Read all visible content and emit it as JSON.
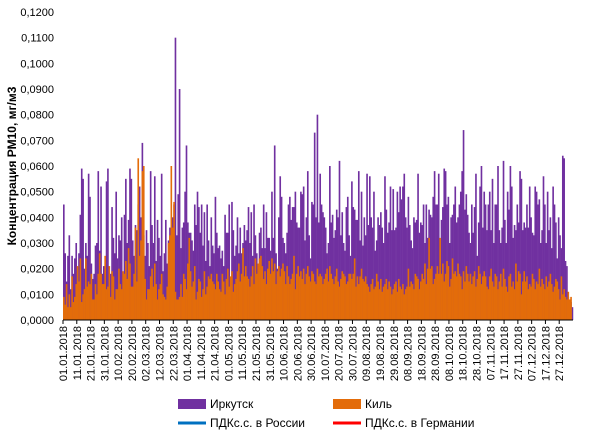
{
  "chart_data": {
    "type": "bar",
    "title": "",
    "ylabel": "Концентрация РМ10, мг/м3",
    "xlabel": "",
    "ylim": [
      0,
      0.12
    ],
    "y_ticks": [
      "0,0000",
      "0,0100",
      "0,0200",
      "0,0300",
      "0,0400",
      "0,0500",
      "0,0600",
      "0,0700",
      "0,0800",
      "0,0900",
      "0,1000",
      "0,1100",
      "0,1200"
    ],
    "x_ticks": [
      "01.01.2018",
      "11.01.2018",
      "21.01.2018",
      "31.01.2018",
      "10.02.2018",
      "20.02.2018",
      "02.03.2018",
      "12.03.2018",
      "22.03.2018",
      "01.04.2018",
      "11.04.2018",
      "21.04.2018",
      "01.05.2018",
      "11.05.2018",
      "21.05.2018",
      "31.05.2018",
      "10.06.2018",
      "20.06.2018",
      "30.06.2018",
      "10.07.2018",
      "20.07.2018",
      "30.07.2018",
      "09.08.2018",
      "19.08.2018",
      "29.08.2018",
      "08.09.2018",
      "18.09.2018",
      "28.09.2018",
      "08.10.2018",
      "18.10.2018",
      "28.10.2018",
      "07.11.2018",
      "17.11.2018",
      "27.11.2018",
      "07.12.2018",
      "17.12.2018",
      "27.12.2018"
    ],
    "x_start": "2018-01-01",
    "grid": false,
    "legend_position": "bottom",
    "series": [
      {
        "name": "Иркутск",
        "color": "#7030A0",
        "values": [
          0.045,
          0.026,
          0.015,
          0.025,
          0.033,
          0.012,
          0.025,
          0.018,
          0.024,
          0.03,
          0.014,
          0.026,
          0.041,
          0.059,
          0.055,
          0.02,
          0.03,
          0.025,
          0.057,
          0.048,
          0.022,
          0.016,
          0.018,
          0.029,
          0.03,
          0.058,
          0.027,
          0.052,
          0.018,
          0.021,
          0.02,
          0.054,
          0.059,
          0.018,
          0.018,
          0.044,
          0.032,
          0.026,
          0.05,
          0.024,
          0.033,
          0.031,
          0.04,
          0.012,
          0.041,
          0.055,
          0.03,
          0.039,
          0.059,
          0.055,
          0.031,
          0.025,
          0.037,
          0.035,
          0.045,
          0.052,
          0.04,
          0.069,
          0.033,
          0.025,
          0.035,
          0.03,
          0.021,
          0.058,
          0.037,
          0.03,
          0.056,
          0.023,
          0.039,
          0.032,
          0.025,
          0.057,
          0.019,
          0.026,
          0.039,
          0.022,
          0.031,
          0.036,
          0.032,
          0.04,
          0.045,
          0.11,
          0.033,
          0.049,
          0.09,
          0.028,
          0.036,
          0.038,
          0.05,
          0.068,
          0.038,
          0.034,
          0.034,
          0.031,
          0.027,
          0.045,
          0.037,
          0.05,
          0.044,
          0.034,
          0.045,
          0.029,
          0.042,
          0.023,
          0.045,
          0.031,
          0.021,
          0.04,
          0.029,
          0.026,
          0.048,
          0.034,
          0.028,
          0.029,
          0.024,
          0.027,
          0.021,
          0.041,
          0.034,
          0.034,
          0.045,
          0.015,
          0.046,
          0.035,
          0.025,
          0.029,
          0.04,
          0.026,
          0.036,
          0.026,
          0.03,
          0.037,
          0.031,
          0.035,
          0.044,
          0.03,
          0.042,
          0.025,
          0.045,
          0.033,
          0.026,
          0.021,
          0.034,
          0.036,
          0.028,
          0.045,
          0.028,
          0.042,
          0.032,
          0.032,
          0.027,
          0.05,
          0.032,
          0.068,
          0.026,
          0.02,
          0.04,
          0.056,
          0.048,
          0.032,
          0.03,
          0.026,
          0.034,
          0.045,
          0.048,
          0.039,
          0.044,
          0.044,
          0.05,
          0.038,
          0.036,
          0.036,
          0.05,
          0.049,
          0.052,
          0.031,
          0.04,
          0.058,
          0.033,
          0.024,
          0.046,
          0.045,
          0.073,
          0.04,
          0.08,
          0.038,
          0.057,
          0.045,
          0.042,
          0.04,
          0.036,
          0.026,
          0.03,
          0.06,
          0.038,
          0.041,
          0.032,
          0.035,
          0.043,
          0.04,
          0.062,
          0.033,
          0.042,
          0.03,
          0.027,
          0.044,
          0.048,
          0.033,
          0.025,
          0.054,
          0.044,
          0.043,
          0.039,
          0.039,
          0.058,
          0.031,
          0.05,
          0.029,
          0.04,
          0.033,
          0.057,
          0.037,
          0.056,
          0.04,
          0.036,
          0.05,
          0.027,
          0.031,
          0.04,
          0.037,
          0.042,
          0.036,
          0.03,
          0.056,
          0.043,
          0.034,
          0.038,
          0.052,
          0.035,
          0.051,
          0.035,
          0.036,
          0.05,
          0.042,
          0.052,
          0.047,
          0.052,
          0.057,
          0.04,
          0.036,
          0.048,
          0.037,
          0.031,
          0.028,
          0.04,
          0.038,
          0.039,
          0.057,
          0.034,
          0.038,
          0.037,
          0.045,
          0.03,
          0.045,
          0.032,
          0.043,
          0.041,
          0.04,
          0.048,
          0.058,
          0.045,
          0.045,
          0.057,
          0.022,
          0.039,
          0.044,
          0.059,
          0.058,
          0.045,
          0.048,
          0.03,
          0.04,
          0.041,
          0.045,
          0.052,
          0.038,
          0.04,
          0.045,
          0.05,
          0.058,
          0.074,
          0.043,
          0.049,
          0.041,
          0.034,
          0.03,
          0.045,
          0.034,
          0.044,
          0.057,
          0.025,
          0.038,
          0.052,
          0.06,
          0.036,
          0.05,
          0.045,
          0.035,
          0.045,
          0.05,
          0.035,
          0.055,
          0.03,
          0.045,
          0.045,
          0.06,
          0.035,
          0.03,
          0.036,
          0.062,
          0.039,
          0.03,
          0.05,
          0.043,
          0.06,
          0.052,
          0.032,
          0.037,
          0.035,
          0.045,
          0.038,
          0.058,
          0.055,
          0.035,
          0.038,
          0.036,
          0.045,
          0.036,
          0.052,
          0.04,
          0.034,
          0.033,
          0.052,
          0.05,
          0.045,
          0.047,
          0.03,
          0.035,
          0.056,
          0.045,
          0.03,
          0.05,
          0.035,
          0.04,
          0.028,
          0.052,
          0.045,
          0.038,
          0.024,
          0.04,
          0.033,
          0.028,
          0.064,
          0.063,
          0.023,
          0.021,
          0.009,
          0.008,
          0.007,
          0.005
        ]
      },
      {
        "name": "Киль",
        "color": "#E36C0A",
        "values": [
          0.009,
          0.006,
          0.014,
          0.005,
          0.01,
          0.005,
          0.017,
          0.007,
          0.009,
          0.014,
          0.021,
          0.015,
          0.024,
          0.007,
          0.01,
          0.012,
          0.024,
          0.013,
          0.015,
          0.014,
          0.018,
          0.008,
          0.008,
          0.014,
          0.01,
          0.018,
          0.026,
          0.018,
          0.014,
          0.014,
          0.025,
          0.012,
          0.013,
          0.021,
          0.009,
          0.019,
          0.017,
          0.008,
          0.012,
          0.012,
          0.02,
          0.014,
          0.012,
          0.019,
          0.018,
          0.023,
          0.016,
          0.028,
          0.022,
          0.013,
          0.013,
          0.018,
          0.036,
          0.015,
          0.063,
          0.025,
          0.031,
          0.058,
          0.06,
          0.016,
          0.008,
          0.012,
          0.012,
          0.017,
          0.02,
          0.013,
          0.022,
          0.014,
          0.008,
          0.012,
          0.014,
          0.018,
          0.01,
          0.009,
          0.008,
          0.013,
          0.03,
          0.033,
          0.06,
          0.036,
          0.046,
          0.011,
          0.008,
          0.008,
          0.009,
          0.014,
          0.009,
          0.018,
          0.016,
          0.012,
          0.022,
          0.032,
          0.019,
          0.013,
          0.015,
          0.021,
          0.008,
          0.011,
          0.016,
          0.015,
          0.009,
          0.012,
          0.019,
          0.01,
          0.013,
          0.017,
          0.016,
          0.018,
          0.015,
          0.014,
          0.012,
          0.018,
          0.015,
          0.012,
          0.011,
          0.018,
          0.015,
          0.01,
          0.016,
          0.02,
          0.013,
          0.017,
          0.019,
          0.011,
          0.014,
          0.016,
          0.019,
          0.022,
          0.015,
          0.018,
          0.028,
          0.017,
          0.021,
          0.017,
          0.016,
          0.013,
          0.017,
          0.021,
          0.014,
          0.024,
          0.018,
          0.022,
          0.024,
          0.025,
          0.021,
          0.016,
          0.019,
          0.014,
          0.02,
          0.023,
          0.018,
          0.024,
          0.019,
          0.022,
          0.014,
          0.019,
          0.021,
          0.017,
          0.02,
          0.022,
          0.019,
          0.014,
          0.021,
          0.017,
          0.014,
          0.016,
          0.018,
          0.025,
          0.012,
          0.018,
          0.021,
          0.017,
          0.019,
          0.016,
          0.02,
          0.014,
          0.018,
          0.021,
          0.017,
          0.015,
          0.019,
          0.018,
          0.015,
          0.014,
          0.02,
          0.017,
          0.018,
          0.017,
          0.014,
          0.016,
          0.018,
          0.02,
          0.015,
          0.021,
          0.018,
          0.016,
          0.014,
          0.017,
          0.02,
          0.015,
          0.013,
          0.016,
          0.019,
          0.018,
          0.017,
          0.014,
          0.015,
          0.018,
          0.018,
          0.016,
          0.018,
          0.024,
          0.013,
          0.017,
          0.014,
          0.017,
          0.02,
          0.016,
          0.015,
          0.017,
          0.014,
          0.013,
          0.011,
          0.014,
          0.016,
          0.012,
          0.013,
          0.018,
          0.015,
          0.012,
          0.016,
          0.011,
          0.013,
          0.014,
          0.016,
          0.012,
          0.015,
          0.013,
          0.01,
          0.012,
          0.014,
          0.015,
          0.011,
          0.016,
          0.013,
          0.012,
          0.014,
          0.01,
          0.012,
          0.013,
          0.02,
          0.013,
          0.015,
          0.014,
          0.012,
          0.018,
          0.017,
          0.016,
          0.012,
          0.015,
          0.018,
          0.016,
          0.022,
          0.014,
          0.02,
          0.032,
          0.02,
          0.021,
          0.014,
          0.016,
          0.018,
          0.021,
          0.018,
          0.032,
          0.018,
          0.022,
          0.015,
          0.018,
          0.023,
          0.021,
          0.013,
          0.016,
          0.024,
          0.018,
          0.019,
          0.017,
          0.022,
          0.018,
          0.017,
          0.012,
          0.019,
          0.015,
          0.021,
          0.018,
          0.015,
          0.018,
          0.014,
          0.017,
          0.019,
          0.013,
          0.016,
          0.021,
          0.018,
          0.014,
          0.017,
          0.019,
          0.017,
          0.013,
          0.012,
          0.017,
          0.02,
          0.015,
          0.013,
          0.018,
          0.017,
          0.012,
          0.015,
          0.018,
          0.013,
          0.02,
          0.016,
          0.013,
          0.011,
          0.017,
          0.018,
          0.013,
          0.015,
          0.012,
          0.022,
          0.015,
          0.019,
          0.018,
          0.01,
          0.015,
          0.019,
          0.015,
          0.017,
          0.012,
          0.014,
          0.013,
          0.018,
          0.016,
          0.012,
          0.015,
          0.014,
          0.02,
          0.013,
          0.016,
          0.014,
          0.012,
          0.017,
          0.013,
          0.015,
          0.018,
          0.014,
          0.011,
          0.013,
          0.016,
          0.015,
          0.012,
          0.008,
          0.017,
          0.01,
          0.012,
          0.009,
          0.008,
          0.011,
          0.008,
          0.009
        ]
      },
      {
        "name": "ПДКс.с. в России",
        "color": "#0070C0",
        "values": []
      },
      {
        "name": "ПДКс.с. в Германии",
        "color": "#FF0000",
        "values": []
      }
    ]
  }
}
